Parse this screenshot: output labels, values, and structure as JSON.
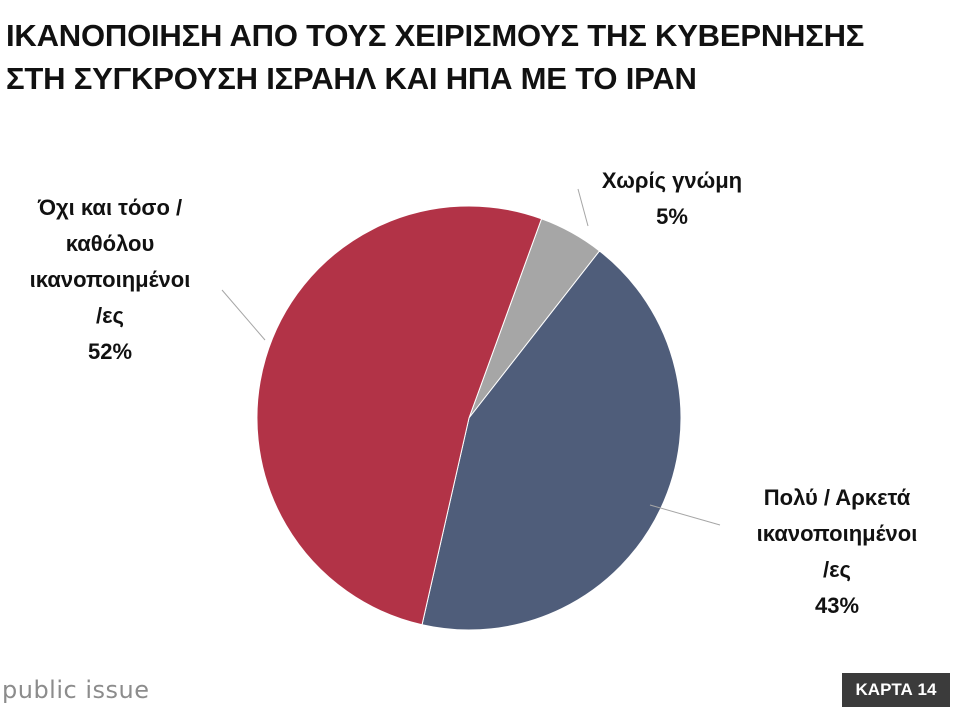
{
  "title": {
    "line1": "ΙΚΑΝΟΠΟΙΗΣΗ ΑΠΟ ΤΟΥΣ ΧΕΙΡΙΣΜΟΥΣ ΤΗΣ ΚΥΒΕΡΝΗΣΗΣ",
    "line2": "ΣΤΗ ΣΥΓΚΡΟΥΣΗ ΙΣΡΑΗΛ ΚΑΙ ΗΠΑ ΜΕ ΤΟ ΙΡΑΝ"
  },
  "footer": {
    "brand": "public issue",
    "badge": "ΚΑΡΤΑ 14"
  },
  "chart_data": {
    "type": "pie",
    "title": "ΙΚΑΝΟΠΟΙΗΣΗ ΑΠΟ ΤΟΥΣ ΧΕΙΡΙΣΜΟΥΣ ΤΗΣ ΚΥΒΕΡΝΗΣΗΣ ΣΤΗ ΣΥΓΚΡΟΥΣΗ ΙΣΡΑΗΛ ΚΑΙ ΗΠΑ ΜΕ ΤΟ ΙΡΑΝ",
    "slices": [
      {
        "label": "Χωρίς γνώμη",
        "label_lines": [
          "Χωρίς γνώμη"
        ],
        "value": 5,
        "value_label": "5%",
        "color": "#a6a6a6"
      },
      {
        "label": "Πολύ / Αρκετά ικανοποιημένοι /ες",
        "label_lines": [
          "Πολύ / Αρκετά",
          "ικανοποιημένοι",
          "/ες"
        ],
        "value": 43,
        "value_label": "43%",
        "color": "#4f5d7a"
      },
      {
        "label": "Όχι και τόσο / καθόλου ικανοποιημένοι /ες",
        "label_lines": [
          "Όχι και τόσο /",
          "καθόλου",
          "ικανοποιημένοι",
          "/ες"
        ],
        "value": 52,
        "value_label": "52%",
        "color": "#b23347"
      }
    ],
    "start_angle_deg": 20,
    "direction": "clockwise",
    "legend": "none"
  }
}
